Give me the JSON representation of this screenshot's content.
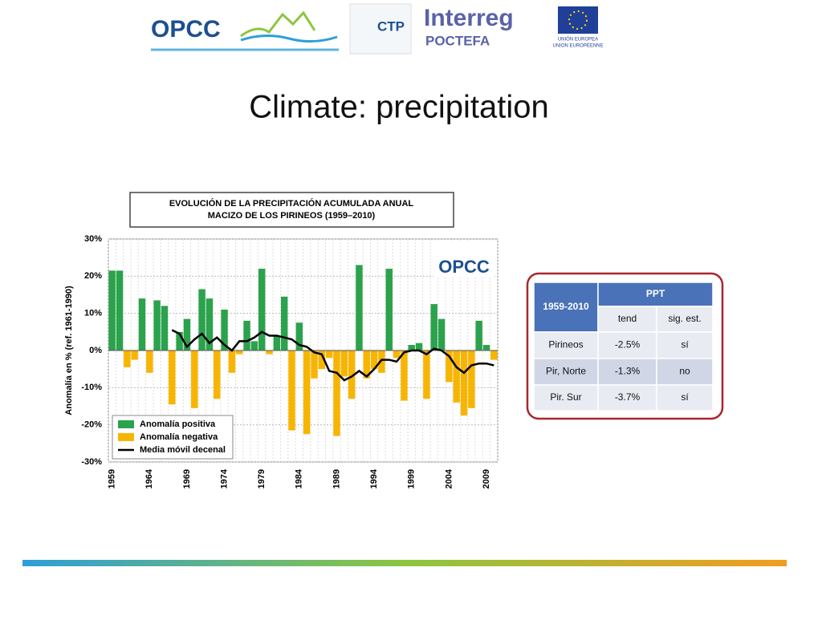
{
  "header": {
    "logos": [
      "OPCC",
      "CTP",
      "Interreg",
      "POCTEFA",
      "UNIÓN EUROPEA",
      "UNION EUROPÉENNE"
    ]
  },
  "slide_title": "Climate: precipitation",
  "chart_data": {
    "type": "bar",
    "title": [
      "EVOLUCIÓN DE LA PRECIPITACIÓN ACUMULADA ANUAL",
      "MACIZO DE LOS PIRINEOS  (1959–2010)"
    ],
    "watermark": "OPCC",
    "y_label": "Anomalía en % (ref. 1961-1990)",
    "categories": [
      "1959",
      null,
      null,
      null,
      null,
      "1964",
      null,
      null,
      null,
      null,
      "1969",
      null,
      null,
      null,
      null,
      "1974",
      null,
      null,
      null,
      null,
      "1979",
      null,
      null,
      null,
      null,
      "1984",
      null,
      null,
      null,
      null,
      "1989",
      null,
      null,
      null,
      null,
      "1994",
      null,
      null,
      null,
      null,
      "1999",
      null,
      null,
      null,
      null,
      "2004",
      null,
      null,
      null,
      null,
      "2009",
      null
    ],
    "values": [
      21.5,
      21.5,
      -4.5,
      -2.5,
      14,
      -6,
      13.5,
      12,
      -14.5,
      5,
      8.5,
      -15.5,
      16.5,
      14,
      -13,
      11,
      -6,
      -1,
      8,
      2.5,
      22,
      -1,
      4,
      14.5,
      -21.5,
      7.5,
      -22.5,
      -7.5,
      -5,
      -2,
      -23,
      -7,
      -13,
      23,
      -7.5,
      -5,
      -6,
      22,
      -2,
      -13.5,
      1.5,
      2,
      -13,
      12.5,
      8.5,
      -8.5,
      -14,
      -17.5,
      -15.5,
      8,
      1.5,
      -2.5
    ],
    "legend": [
      {
        "name": "Anomalía positiva",
        "color": "#2ba24c"
      },
      {
        "name": "Anomalía negativa",
        "color": "#f7b500"
      }
    ],
    "series": [
      {
        "name": "Media móvil decenal",
        "color": "#000000",
        "type": "line",
        "values": [
          null,
          null,
          null,
          null,
          null,
          null,
          null,
          null,
          5.5,
          4.5,
          1,
          3,
          4.5,
          2,
          3.5,
          1.5,
          0,
          2.5,
          2.5,
          3.5,
          5,
          4,
          4,
          3.5,
          3,
          1.5,
          1,
          -0.5,
          -1,
          -5.5,
          -6,
          -8,
          -7,
          -5.5,
          -7,
          -5,
          -2.5,
          -2.5,
          -3,
          -0.5,
          0,
          0,
          -1,
          0.5,
          0,
          -1.5,
          -4.5,
          -6,
          -4,
          -3.5,
          -3.5,
          -4
        ]
      }
    ],
    "ylim": [
      -30,
      30
    ],
    "yticks": [
      {
        "value": -30,
        "label": "-30%"
      },
      {
        "value": -20,
        "label": "-20%"
      },
      {
        "value": -10,
        "label": "-10%"
      },
      {
        "value": 0,
        "label": "0%"
      },
      {
        "value": 10,
        "label": "10%"
      },
      {
        "value": 20,
        "label": "20%"
      },
      {
        "value": 30,
        "label": "30%"
      }
    ],
    "grid": true,
    "legend_position": "lower left"
  },
  "table": {
    "corner": "1959-2010",
    "group": "PPT",
    "columns": [
      "tend",
      "sig. est."
    ],
    "rows": [
      [
        "Pirineos",
        "-2.5%",
        "sí"
      ],
      [
        "Pir, Norte",
        "-1.3%",
        "no"
      ],
      [
        "Pir. Sur",
        "-3.7%",
        "sí"
      ]
    ]
  }
}
